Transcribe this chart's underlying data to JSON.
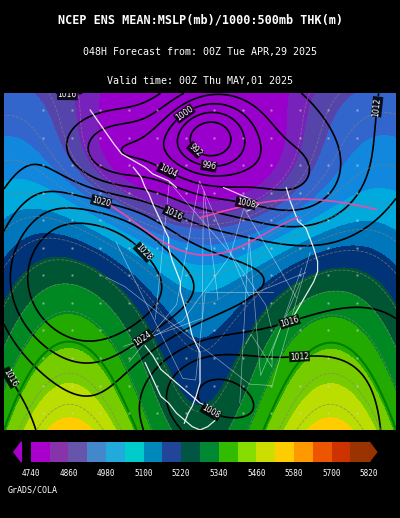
{
  "title_line1": "NCEP ENS MEAN:MSLP(mb)/1000:500mb THK(m)",
  "title_line2": "048H Forecast from: 00Z Tue APR,29 2025",
  "title_line3": "Valid time: 00Z Thu MAY,01 2025",
  "colorbar_labels": [
    "4740",
    "4860",
    "4980",
    "5100",
    "5220",
    "5340",
    "5460",
    "5580",
    "5700",
    "5820"
  ],
  "colorbar_colors": [
    "#9B00FF",
    "#7B00DD",
    "#6600CC",
    "#4444BB",
    "#2299DD",
    "#00CCEE",
    "#0099CC",
    "#003388",
    "#006633",
    "#009900",
    "#33CC00",
    "#99EE00",
    "#CCEE00",
    "#FFDD00",
    "#FFAA00",
    "#FF6600",
    "#CC3300",
    "#882200"
  ],
  "colorbar_colors_display": [
    "#AA00CC",
    "#8833BB",
    "#6655BB",
    "#4488CC",
    "#22AADD",
    "#00CCDD",
    "#0099CC",
    "#224499",
    "#006644",
    "#009933",
    "#33BB00",
    "#88DD00",
    "#CCDD00",
    "#FFCC00",
    "#FF9900",
    "#FF6600",
    "#CC4400",
    "#993300"
  ],
  "background_color": "#000000",
  "map_bg": "#C8A060",
  "credit": "GrADS/COLA",
  "forecast_hour": 48
}
